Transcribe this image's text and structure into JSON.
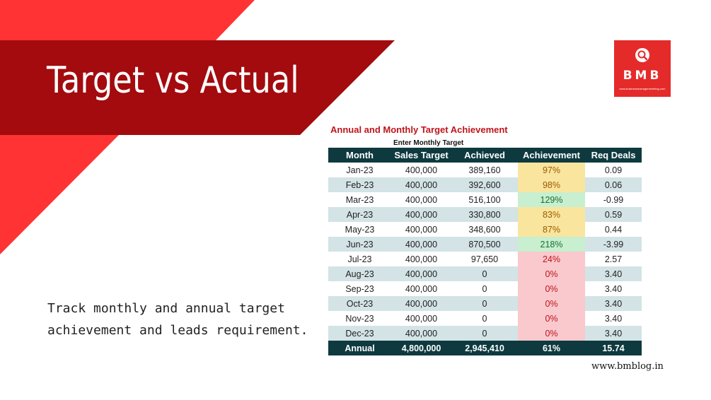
{
  "banner": {
    "title": "Target vs Actual"
  },
  "logo": {
    "text": "BMB",
    "subtitle": "www.businessmanagementblog.com",
    "icon": "magnifier-icon"
  },
  "description": "Track monthly and annual target achievement and leads requirement.",
  "table": {
    "title": "Annual and Monthly Target Achievement",
    "subtitle": "Enter Monthly Target",
    "headers": [
      "Month",
      "Sales Target",
      "Achieved",
      "Achievement",
      "Req Deals"
    ],
    "rows": [
      {
        "month": "Jan-23",
        "target": "400,000",
        "achieved": "389,160",
        "achievement": "97%",
        "req": "0.09",
        "status": "yellow"
      },
      {
        "month": "Feb-23",
        "target": "400,000",
        "achieved": "392,600",
        "achievement": "98%",
        "req": "0.06",
        "status": "yellow"
      },
      {
        "month": "Mar-23",
        "target": "400,000",
        "achieved": "516,100",
        "achievement": "129%",
        "req": "-0.99",
        "status": "green"
      },
      {
        "month": "Apr-23",
        "target": "400,000",
        "achieved": "330,800",
        "achievement": "83%",
        "req": "0.59",
        "status": "yellow"
      },
      {
        "month": "May-23",
        "target": "400,000",
        "achieved": "348,600",
        "achievement": "87%",
        "req": "0.44",
        "status": "yellow"
      },
      {
        "month": "Jun-23",
        "target": "400,000",
        "achieved": "870,500",
        "achievement": "218%",
        "req": "-3.99",
        "status": "green"
      },
      {
        "month": "Jul-23",
        "target": "400,000",
        "achieved": "97,650",
        "achievement": "24%",
        "req": "2.57",
        "status": "pink"
      },
      {
        "month": "Aug-23",
        "target": "400,000",
        "achieved": "0",
        "achievement": "0%",
        "req": "3.40",
        "status": "pink"
      },
      {
        "month": "Sep-23",
        "target": "400,000",
        "achieved": "0",
        "achievement": "0%",
        "req": "3.40",
        "status": "pink"
      },
      {
        "month": "Oct-23",
        "target": "400,000",
        "achieved": "0",
        "achievement": "0%",
        "req": "3.40",
        "status": "pink"
      },
      {
        "month": "Nov-23",
        "target": "400,000",
        "achieved": "0",
        "achievement": "0%",
        "req": "3.40",
        "status": "pink"
      },
      {
        "month": "Dec-23",
        "target": "400,000",
        "achieved": "0",
        "achievement": "0%",
        "req": "3.40",
        "status": "pink"
      }
    ],
    "total": {
      "month": "Annual",
      "target": "4,800,000",
      "achieved": "2,945,410",
      "achievement": "61%",
      "req": "15.74"
    }
  },
  "footer": {
    "url": "www.bmblog.in"
  },
  "colors": {
    "bright_red": "#ff3333",
    "dark_red": "#a30b0e",
    "header_teal": "#0e3a3f",
    "logo_red": "#e52a2a"
  }
}
